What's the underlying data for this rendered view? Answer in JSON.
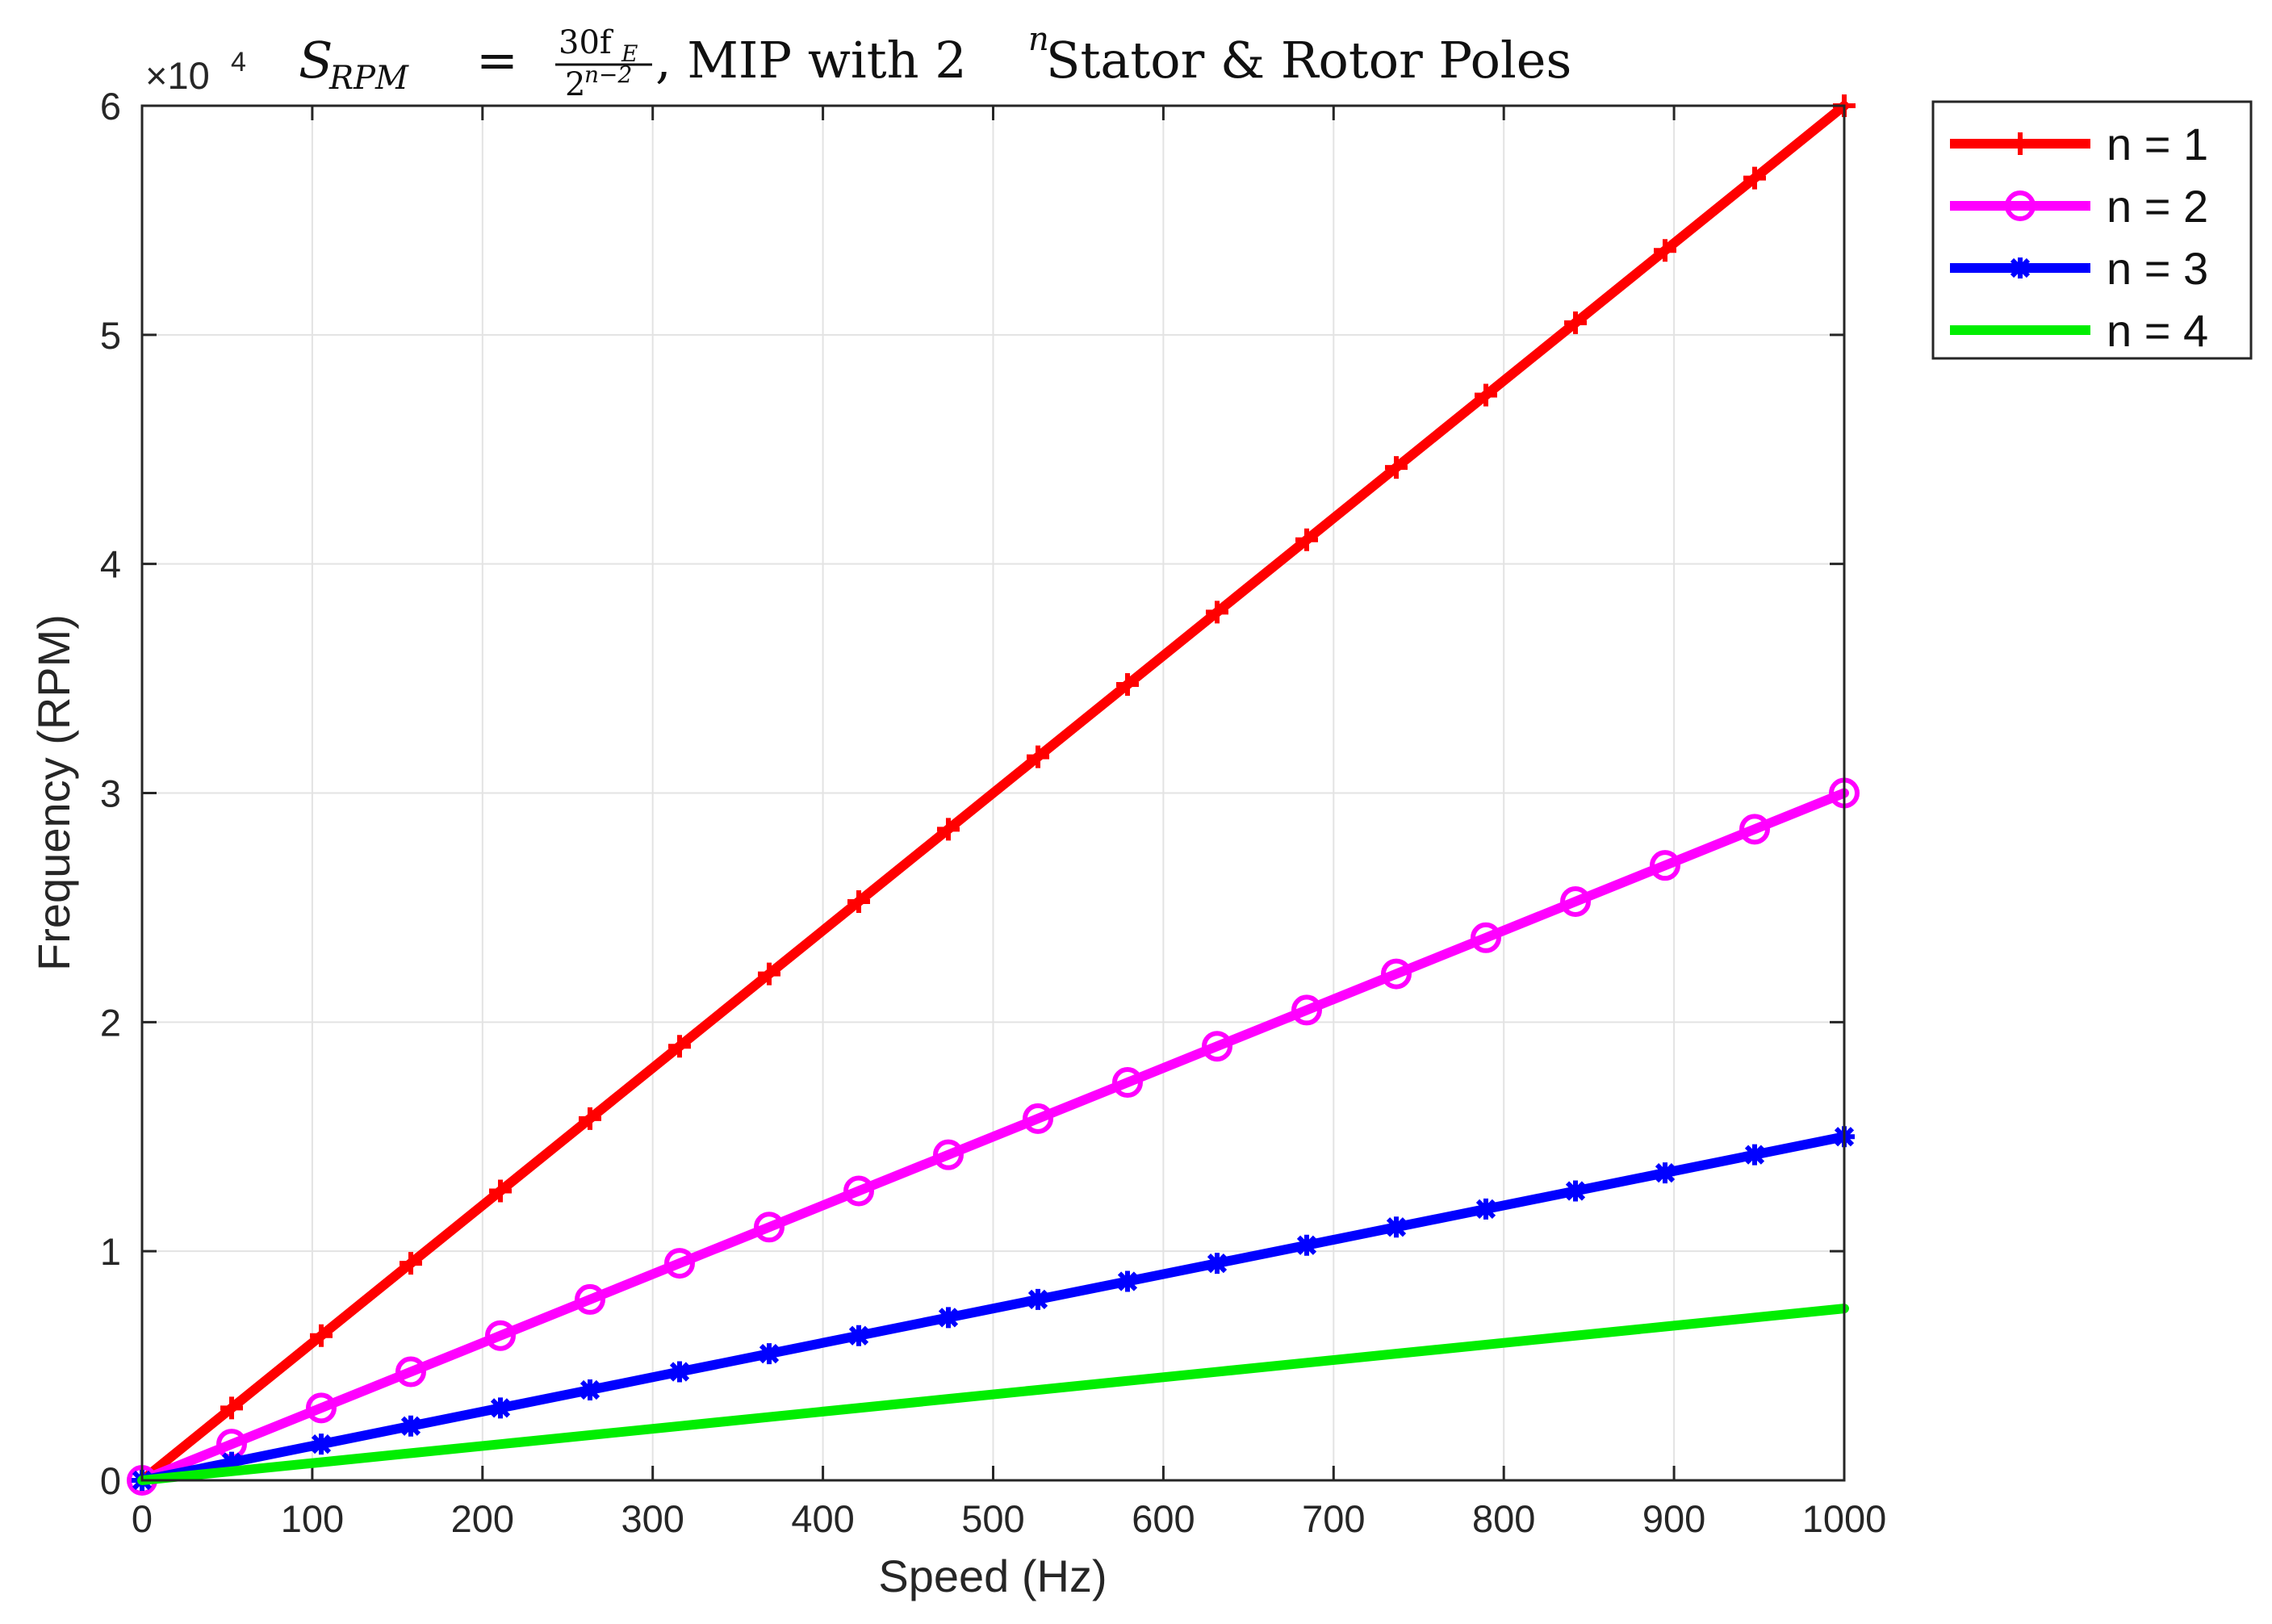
{
  "chart_data": {
    "type": "line",
    "title": {
      "lhs": "S",
      "lhs_sub": "RPM",
      "equals": "=",
      "numerator": "30f",
      "numerator_sub": "E",
      "denominator": "2",
      "denominator_sup": "n−2",
      "rest": ", MIP with 2",
      "rest_sup": "n",
      "rest_tail": " Stator & Rotor Poles"
    },
    "xlabel": "Speed (Hz)",
    "ylabel": "Frequency (RPM)",
    "y_exponent_label": "×10",
    "y_exponent_power": "4",
    "xlim": [
      0,
      1000
    ],
    "ylim": [
      0,
      60000
    ],
    "xticks": [
      0,
      100,
      200,
      300,
      400,
      500,
      600,
      700,
      800,
      900,
      1000
    ],
    "xtick_labels": [
      "0",
      "100",
      "200",
      "300",
      "400",
      "500",
      "600",
      "700",
      "800",
      "900",
      "1000"
    ],
    "yticks": [
      0,
      10000,
      20000,
      30000,
      40000,
      50000,
      60000
    ],
    "ytick_labels": [
      "0",
      "1",
      "2",
      "3",
      "4",
      "5",
      "6"
    ],
    "grid": true,
    "legend_position": "outside-top-right",
    "x": [
      0,
      52.63,
      105.26,
      157.89,
      210.53,
      263.16,
      315.79,
      368.42,
      421.05,
      473.68,
      526.32,
      578.95,
      631.58,
      684.21,
      736.84,
      789.47,
      842.11,
      894.74,
      947.37,
      1000
    ],
    "series": [
      {
        "name": "n = 1",
        "color": "#ff0000",
        "marker": "plus",
        "slope": 60,
        "values": [
          0,
          3158,
          6316,
          9474,
          12632,
          15789,
          18947,
          22105,
          25263,
          28421,
          31579,
          34737,
          37895,
          41053,
          44211,
          47368,
          50526,
          53684,
          56842,
          60000
        ]
      },
      {
        "name": "n = 2",
        "color": "#ff00ff",
        "marker": "circle",
        "slope": 30,
        "values": [
          0,
          1579,
          3158,
          4737,
          6316,
          7895,
          9474,
          11053,
          12632,
          14211,
          15789,
          17368,
          18947,
          20526,
          22105,
          23684,
          25263,
          26842,
          28421,
          30000
        ]
      },
      {
        "name": "n = 3",
        "color": "#0000ff",
        "marker": "star",
        "slope": 15,
        "values": [
          0,
          789,
          1579,
          2368,
          3158,
          3947,
          4737,
          5526,
          6316,
          7105,
          7895,
          8684,
          9474,
          10263,
          11053,
          11842,
          12632,
          13421,
          14211,
          15000
        ]
      },
      {
        "name": "n = 4",
        "color": "#00ee00",
        "marker": "none",
        "slope": 7.5,
        "values": [
          0,
          395,
          789,
          1184,
          1579,
          1974,
          2368,
          2763,
          3158,
          3553,
          3947,
          4342,
          4737,
          5132,
          5526,
          5921,
          6316,
          6711,
          7105,
          7500
        ]
      }
    ]
  }
}
